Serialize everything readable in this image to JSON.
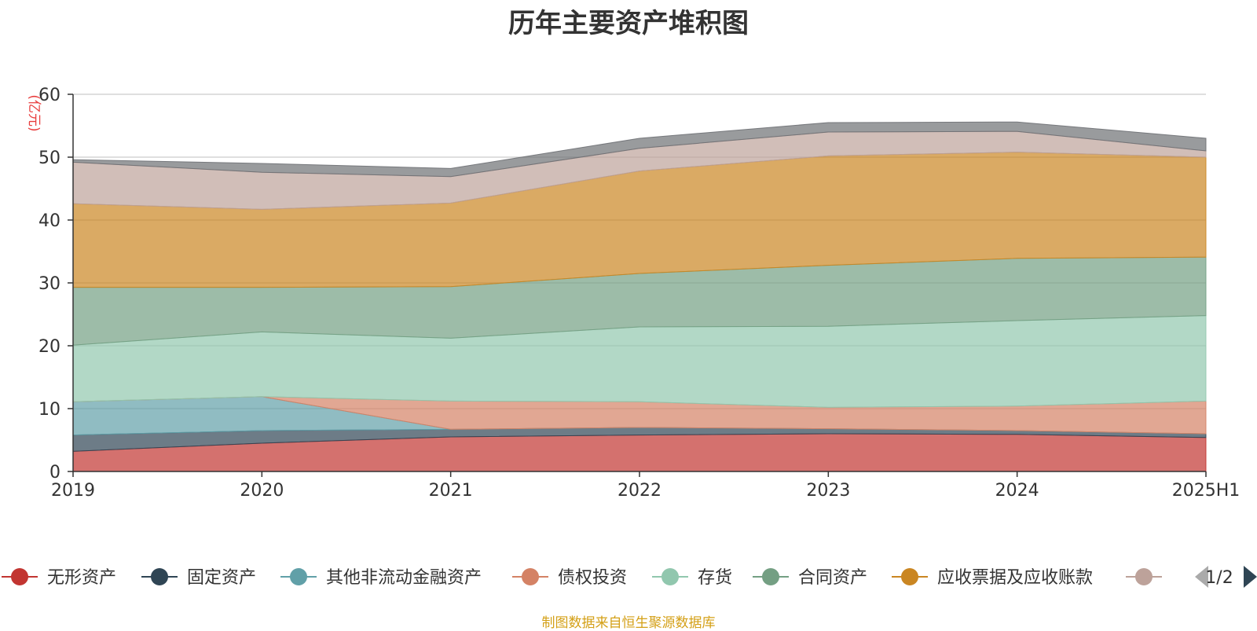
{
  "chart_data": {
    "type": "area",
    "stacked": true,
    "title": "历年主要资产堆积图",
    "ylabel": "(亿元)",
    "xlabel": "",
    "ylim": [
      0,
      60
    ],
    "yticks": [
      0,
      10,
      20,
      30,
      40,
      50,
      60
    ],
    "grid": true,
    "categories": [
      "2019",
      "2020",
      "2021",
      "2022",
      "2023",
      "2024",
      "2025H1"
    ],
    "series": [
      {
        "name": "无形资产",
        "color": "#c23531",
        "values": [
          3.2,
          4.5,
          5.5,
          5.8,
          6.0,
          5.9,
          5.4
        ]
      },
      {
        "name": "固定资产",
        "color": "#2f4554",
        "values": [
          2.6,
          2.0,
          1.2,
          1.2,
          0.8,
          0.6,
          0.6
        ]
      },
      {
        "name": "其他非流动金融资产",
        "color": "#61a0a8",
        "values": [
          5.3,
          5.4,
          0.0,
          0.0,
          0.0,
          0.0,
          0.0
        ]
      },
      {
        "name": "债权投资",
        "color": "#d48265",
        "values": [
          0.0,
          0.0,
          4.5,
          4.1,
          3.4,
          3.9,
          5.2
        ]
      },
      {
        "name": "存货",
        "color": "#91c7ae",
        "values": [
          9.0,
          10.3,
          10.0,
          11.9,
          12.9,
          13.6,
          13.6
        ]
      },
      {
        "name": "合同资产",
        "color": "#749f83",
        "values": [
          9.2,
          7.1,
          8.2,
          8.5,
          9.7,
          9.9,
          9.3
        ]
      },
      {
        "name": "应收票据及应收账款",
        "color": "#ca8622",
        "values": [
          13.3,
          12.4,
          13.3,
          16.3,
          17.4,
          16.9,
          15.9
        ]
      },
      {
        "name": "",
        "color": "#bda29a",
        "values": [
          6.6,
          5.9,
          4.2,
          3.6,
          3.8,
          3.3,
          1.0
        ]
      },
      {
        "name": "",
        "color": "#6e7074",
        "values": [
          0.4,
          1.4,
          1.3,
          1.6,
          1.5,
          1.5,
          2.0
        ]
      }
    ],
    "legend": {
      "placement": "bottom",
      "page": "1/2"
    },
    "source_note": "制图数据来自恒生聚源数据库"
  }
}
